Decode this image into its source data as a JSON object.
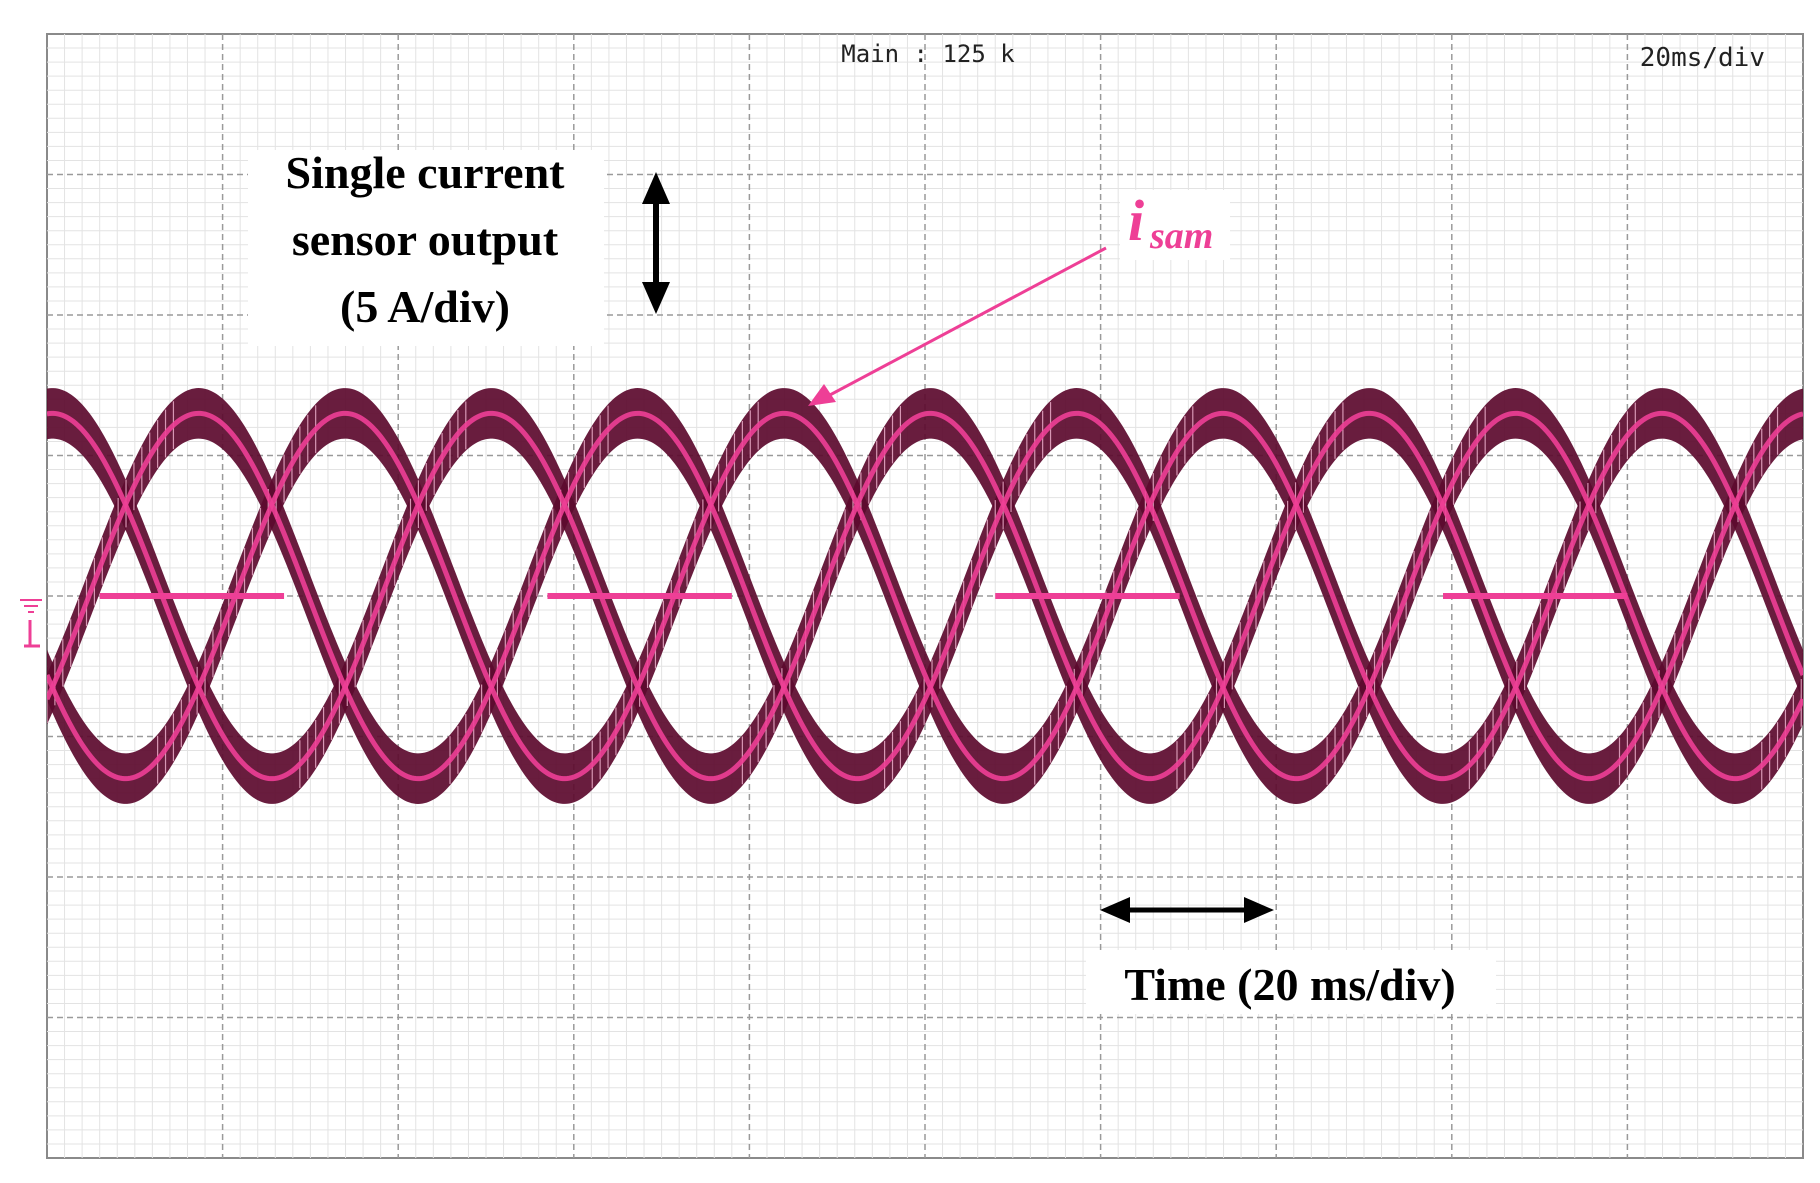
{
  "chart_data": {
    "type": "line",
    "screen": {
      "top_center_label": "Main : 125 k",
      "top_right_label": "20ms/div"
    },
    "annotations": {
      "y_scale_lines": [
        "Single current",
        "sensor output",
        "(5 A/div)"
      ],
      "x_scale": "Time (20 ms/div)",
      "trace_label_main": "i",
      "trace_label_sub": "sam"
    },
    "xlim": [
      0,
      200
    ],
    "ylim": [
      -20,
      20
    ],
    "x_division_ms": 20,
    "y_division_A": 5,
    "grid": true,
    "series": [
      {
        "name": "isam",
        "waveform": "three-phase sinusoidal sampled currents",
        "fundamental_period_ms": 50,
        "peak_A": 6.5,
        "colors": {
          "envelope": "#5c0a2e",
          "trace": "#ee3f96"
        }
      }
    ]
  }
}
